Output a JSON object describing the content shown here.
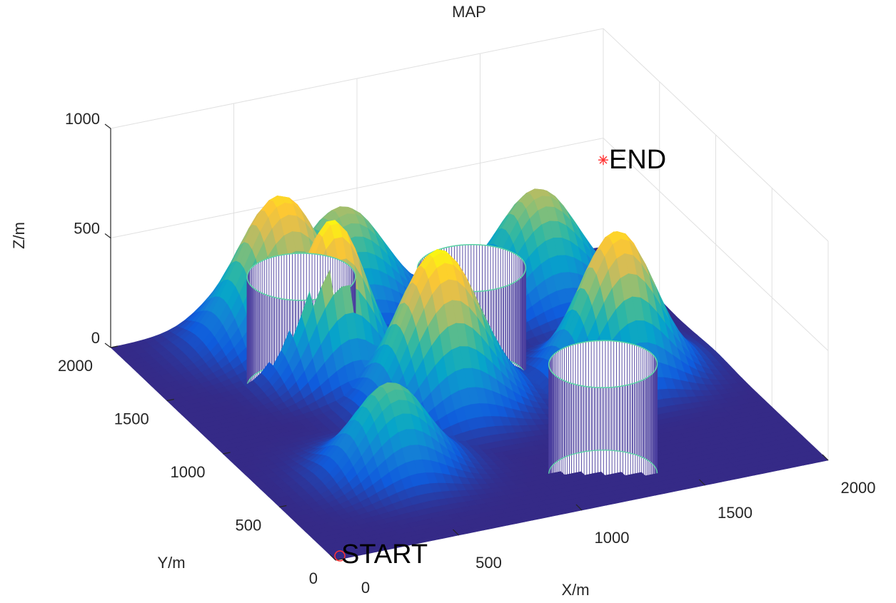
{
  "chart_data": {
    "type": "surface3d",
    "title": "MAP",
    "xlabel": "X/m",
    "ylabel": "Y/m",
    "zlabel": "Z/m",
    "xlim": [
      0,
      2000
    ],
    "ylim": [
      0,
      2000
    ],
    "zlim": [
      0,
      1000
    ],
    "xticks": [
      0,
      500,
      1000,
      1500,
      2000
    ],
    "yticks": [
      0,
      500,
      1000,
      1500,
      2000
    ],
    "zticks": [
      0,
      500,
      1000
    ],
    "grid": true,
    "colormap": [
      "#352a87",
      "#0f5cdd",
      "#1481d6",
      "#06a4ca",
      "#2eb7a4",
      "#87bf77",
      "#d1bb59",
      "#fec832",
      "#f9fb0e"
    ],
    "peaks": [
      {
        "x": 600,
        "y": 1800,
        "height": 650,
        "spread": 230
      },
      {
        "x": 900,
        "y": 1900,
        "height": 480,
        "spread": 230
      },
      {
        "x": 650,
        "y": 1450,
        "height": 700,
        "spread": 180
      },
      {
        "x": 900,
        "y": 1050,
        "height": 700,
        "spread": 220
      },
      {
        "x": 500,
        "y": 600,
        "height": 400,
        "spread": 200
      },
      {
        "x": 1600,
        "y": 1700,
        "height": 500,
        "spread": 220
      },
      {
        "x": 1600,
        "y": 1000,
        "height": 650,
        "spread": 200
      }
    ],
    "obstacles": [
      {
        "x": 500,
        "y": 1400,
        "radius": 200,
        "height": 500,
        "color": "#4b3f9e",
        "edge_color": "#5fd3a8"
      },
      {
        "x": 1100,
        "y": 1200,
        "radius": 200,
        "height": 500,
        "color": "#4b3f9e",
        "edge_color": "#5fd3a8"
      },
      {
        "x": 1200,
        "y": 250,
        "radius": 200,
        "height": 500,
        "color": "#4b3f9e",
        "edge_color": "#5fd3a8"
      }
    ],
    "points": [
      {
        "label": "START",
        "x": 0,
        "y": 0,
        "z": 0,
        "marker": "o",
        "color": "#ff3333"
      },
      {
        "label": "END",
        "x": 2000,
        "y": 2000,
        "z": 400,
        "marker": "*",
        "color": "#ff3333"
      }
    ]
  }
}
